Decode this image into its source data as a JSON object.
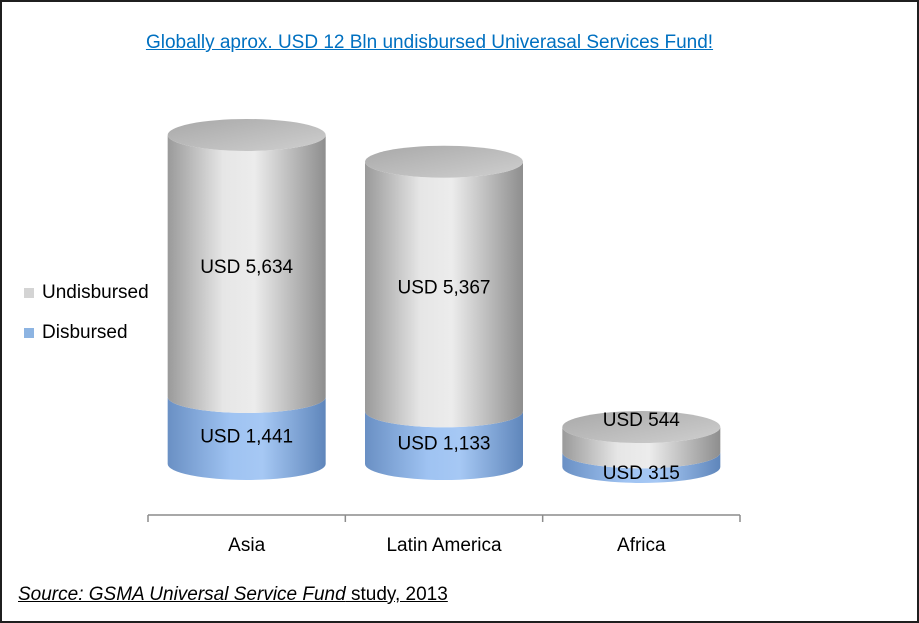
{
  "chart_data": {
    "type": "bar",
    "stacked": true,
    "shape": "cylinder-3d",
    "title": "Globally aprox. USD 12 Bln undisbursed Univerasal Services Fund!",
    "categories": [
      "Asia",
      "Latin America",
      "Africa"
    ],
    "series": [
      {
        "name": "Disbursed",
        "values": [
          1441,
          1133,
          315
        ],
        "labels": [
          "USD 1,441",
          "USD 1,133",
          "USD 315"
        ],
        "color": "#8db4e2"
      },
      {
        "name": "Undisbursed",
        "values": [
          5634,
          5367,
          544
        ],
        "labels": [
          "USD 5,634",
          "USD 5,367",
          "USD 544"
        ],
        "color": "#d4d4d4"
      }
    ],
    "legend": [
      "Undisbursed",
      "Disbursed"
    ],
    "legend_position": "left",
    "grid": false
  },
  "source": {
    "prefix": "Source: GSMA Universal Service Fund",
    "suffix": " study, 2013"
  }
}
